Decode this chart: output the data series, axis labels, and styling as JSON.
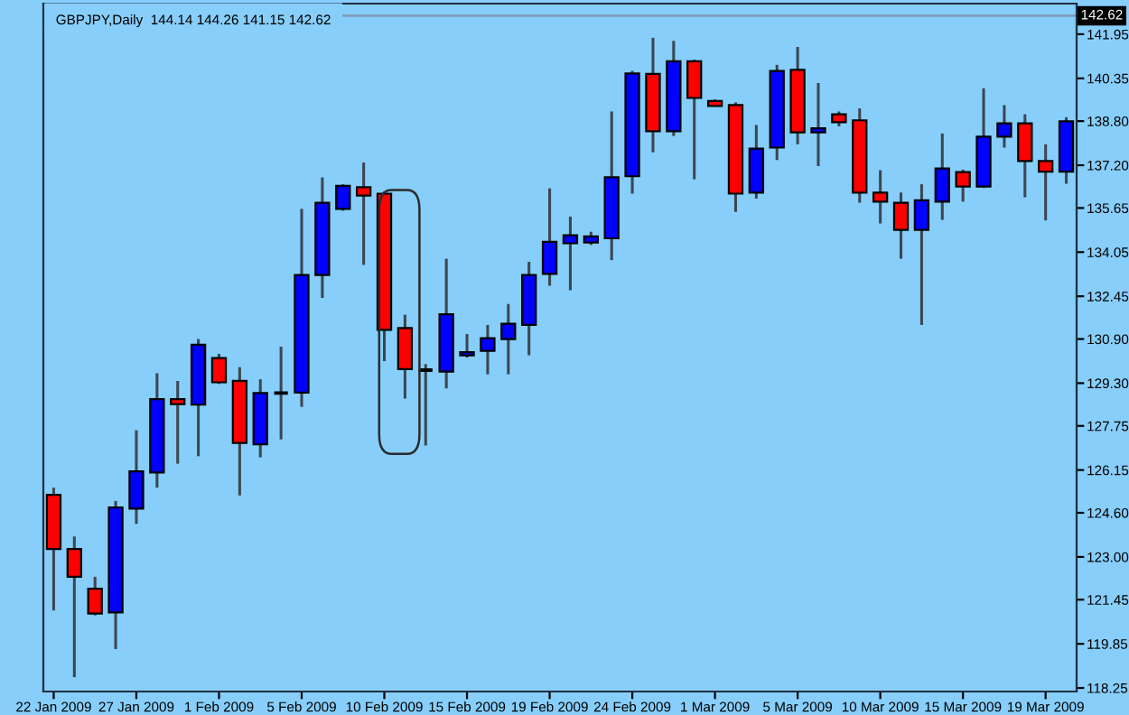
{
  "chart_data": {
    "type": "candlestick",
    "title": "GBPJPY,Daily  144.14 144.26 141.15 142.62",
    "categories": [
      "22 Jan 2009",
      null,
      null,
      null,
      "27 Jan 2009",
      null,
      null,
      null,
      "1 Feb 2009",
      null,
      null,
      null,
      "5 Feb 2009",
      null,
      null,
      null,
      "10 Feb 2009",
      null,
      null,
      null,
      "15 Feb 2009",
      null,
      null,
      null,
      "19 Feb 2009",
      null,
      null,
      null,
      "24 Feb 2009",
      null,
      null,
      null,
      "1 Mar 2009",
      null,
      null,
      null,
      "5 Mar 2009",
      null,
      null,
      null,
      "10 Mar 2009",
      null,
      null,
      null,
      "15 Mar 2009",
      null,
      null,
      null,
      "19 Mar 2009",
      null
    ],
    "ohlc": [
      [
        125.25,
        125.51,
        121.06,
        123.29
      ],
      [
        123.29,
        123.74,
        118.64,
        122.28
      ],
      [
        121.85,
        122.28,
        120.88,
        120.95
      ],
      [
        120.99,
        125.03,
        119.66,
        124.79
      ],
      [
        124.75,
        127.59,
        124.2,
        126.1
      ],
      [
        126.06,
        129.66,
        125.51,
        128.72
      ],
      [
        128.72,
        129.38,
        126.38,
        128.54
      ],
      [
        128.52,
        130.9,
        126.65,
        130.69
      ],
      [
        130.21,
        130.36,
        129.27,
        129.33
      ],
      [
        129.38,
        129.88,
        125.23,
        127.13
      ],
      [
        127.08,
        129.44,
        126.61,
        128.94
      ],
      [
        128.94,
        130.62,
        127.26,
        128.94
      ],
      [
        128.96,
        135.62,
        128.44,
        133.22
      ],
      [
        133.22,
        136.76,
        132.39,
        135.84
      ],
      [
        135.62,
        136.51,
        135.55,
        136.45
      ],
      [
        136.4,
        137.3,
        133.59,
        136.1
      ],
      [
        136.17,
        136.25,
        130.1,
        131.23
      ],
      [
        131.3,
        131.78,
        128.74,
        129.81
      ],
      [
        129.77,
        129.99,
        127.04,
        129.77
      ],
      [
        129.72,
        133.81,
        129.11,
        131.8
      ],
      [
        130.31,
        131.08,
        130.23,
        130.42
      ],
      [
        130.47,
        131.41,
        129.62,
        130.93
      ],
      [
        130.9,
        132.17,
        129.62,
        131.45
      ],
      [
        131.41,
        133.7,
        130.31,
        133.22
      ],
      [
        133.26,
        136.36,
        132.83,
        134.42
      ],
      [
        134.37,
        135.34,
        132.67,
        134.66
      ],
      [
        134.4,
        134.79,
        134.31,
        134.62
      ],
      [
        134.55,
        139.15,
        133.76,
        136.76
      ],
      [
        136.8,
        140.62,
        136.17,
        140.53
      ],
      [
        140.51,
        141.82,
        137.67,
        138.43
      ],
      [
        138.43,
        141.71,
        138.26,
        140.97
      ],
      [
        140.97,
        141.03,
        136.69,
        139.64
      ],
      [
        139.53,
        139.59,
        139.33,
        139.35
      ],
      [
        139.38,
        139.48,
        135.51,
        136.17
      ],
      [
        136.21,
        138.66,
        135.99,
        137.8
      ],
      [
        137.84,
        140.84,
        137.39,
        140.62
      ],
      [
        140.66,
        141.49,
        137.96,
        138.39
      ],
      [
        138.39,
        140.18,
        137.17,
        138.54
      ],
      [
        139.05,
        139.15,
        138.61,
        138.76
      ],
      [
        138.83,
        139.26,
        135.84,
        136.21
      ],
      [
        136.21,
        137.02,
        135.09,
        135.88
      ],
      [
        135.84,
        136.21,
        133.81,
        134.86
      ],
      [
        134.86,
        136.51,
        131.41,
        135.93
      ],
      [
        135.88,
        138.35,
        135.22,
        137.08
      ],
      [
        136.95,
        137.04,
        135.88,
        136.43
      ],
      [
        136.43,
        139.99,
        136.38,
        138.24
      ],
      [
        138.24,
        139.38,
        137.84,
        138.72
      ],
      [
        138.72,
        139.05,
        136.04,
        137.35
      ],
      [
        137.35,
        137.96,
        135.2,
        136.97
      ],
      [
        136.97,
        138.94,
        136.53,
        138.79
      ]
    ],
    "colors": [
      "#ff0000",
      "#ff0000",
      "#ff0000",
      "#0000ff",
      "#0000ff",
      "#0000ff",
      "#ff0000",
      "#0000ff",
      "#ff0000",
      "#ff0000",
      "#0000ff",
      "#000000",
      "#0000ff",
      "#0000ff",
      "#0000ff",
      "#ff0000",
      "#ff0000",
      "#ff0000",
      "#000000",
      "#0000ff",
      "#0000ff",
      "#0000ff",
      "#0000ff",
      "#0000ff",
      "#0000ff",
      "#0000ff",
      "#0000ff",
      "#0000ff",
      "#0000ff",
      "#ff0000",
      "#0000ff",
      "#ff0000",
      "#ff0000",
      "#ff0000",
      "#0000ff",
      "#0000ff",
      "#ff0000",
      "#0000ff",
      "#ff0000",
      "#ff0000",
      "#ff0000",
      "#ff0000",
      "#0000ff",
      "#0000ff",
      "#ff0000",
      "#0000ff",
      "#0000ff",
      "#ff0000",
      "#ff0000",
      "#0000ff"
    ],
    "ylim": [
      118.12,
      143.06
    ],
    "yticks": [
      141.95,
      140.35,
      {
        "value": 138.8,
        "label": "138.80"
      },
      {
        "value": 135.65,
        "label": "135.65"
      },
      {
        "value": 137.2,
        "label": "137.20"
      },
      {
        "value": 134.05,
        "label": "134.05"
      },
      132.45,
      {
        "value": 130.9,
        "label": "130.90"
      },
      {
        "value": 129.3,
        "label": "129.30"
      },
      127.75,
      126.15,
      {
        "value": 124.6,
        "label": "124.60"
      },
      {
        "value": 123.0,
        "label": "123.00"
      },
      121.45,
      119.85,
      118.25
    ],
    "ref_lines": [
      {
        "axis": "y",
        "value": 142.62,
        "label": "142.62",
        "color": "#7f9db9"
      }
    ],
    "grid": false,
    "legend": false
  }
}
